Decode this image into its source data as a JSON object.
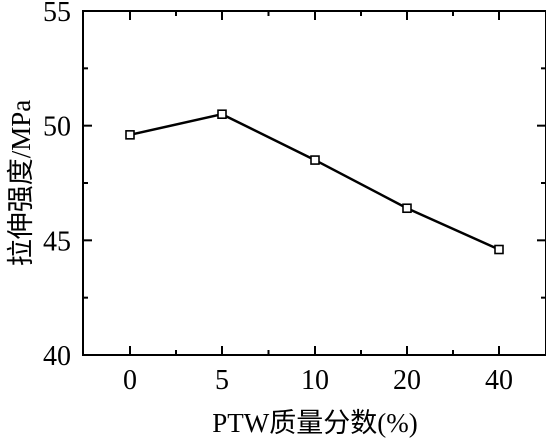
{
  "chart_data": {
    "type": "line",
    "categories": [
      "0",
      "5",
      "10",
      "20",
      "40"
    ],
    "series": [
      {
        "values": [
          49.6,
          50.5,
          48.5,
          46.4,
          44.6
        ]
      }
    ],
    "xlabel": "PTW质量分数(%)",
    "ylabel": "拉伸强度/MPa",
    "ylim": [
      40,
      55
    ],
    "yticks": [
      40,
      45,
      50,
      55
    ],
    "grid": false,
    "marker": "open-square",
    "colors": {
      "line": "#000000",
      "marker_fill": "#ffffff",
      "axis": "#000000"
    }
  }
}
